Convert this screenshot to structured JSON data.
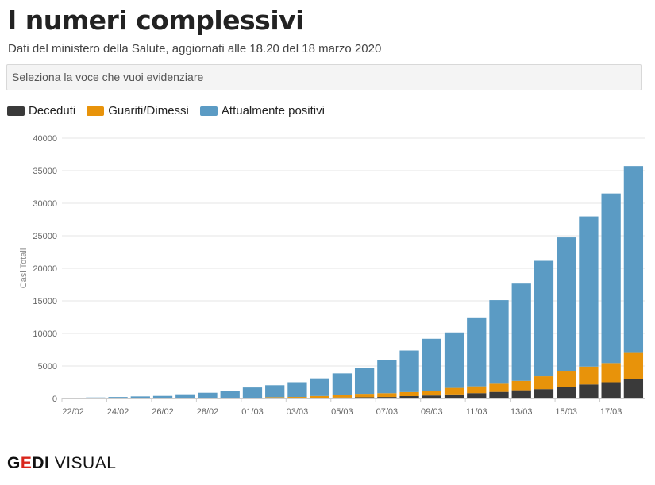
{
  "header": {
    "title": "I numeri complessivi",
    "subtitle": "Dati del ministero della Salute, aggiornati alle 18.20 del 18 marzo 2020"
  },
  "selector": {
    "placeholder": "Seleziona la voce che vuoi evidenziare"
  },
  "legend": [
    {
      "label": "Deceduti",
      "color": "#3a3a3a"
    },
    {
      "label": "Guariti/Dimessi",
      "color": "#e8930a"
    },
    {
      "label": "Attualmente positivi",
      "color": "#5b9bc4"
    }
  ],
  "footer": {
    "brand_main": "GEDI",
    "brand_sub": "VISUAL"
  },
  "chart_data": {
    "type": "bar",
    "stacked": true,
    "ylabel": "Casi Totali",
    "ylim": [
      0,
      40000
    ],
    "yticks": [
      0,
      5000,
      10000,
      15000,
      20000,
      25000,
      30000,
      35000,
      40000
    ],
    "grid": true,
    "legend_position": "top-left",
    "categories": [
      "22/02",
      "23/02",
      "24/02",
      "25/02",
      "26/02",
      "27/02",
      "28/02",
      "29/02",
      "01/03",
      "02/03",
      "03/03",
      "04/03",
      "05/03",
      "06/03",
      "07/03",
      "08/03",
      "09/03",
      "10/03",
      "11/03",
      "12/03",
      "13/03",
      "14/03",
      "15/03",
      "16/03",
      "17/03",
      "18/03"
    ],
    "xtick_labels": [
      "22/02",
      "24/02",
      "26/02",
      "28/02",
      "01/03",
      "03/03",
      "05/03",
      "07/03",
      "09/03",
      "11/03",
      "13/03",
      "15/03",
      "17/03"
    ],
    "series": [
      {
        "name": "Deceduti",
        "color": "#3a3a3a",
        "values": [
          2,
          3,
          7,
          10,
          12,
          17,
          21,
          29,
          34,
          52,
          79,
          107,
          148,
          197,
          233,
          366,
          463,
          631,
          827,
          1016,
          1266,
          1441,
          1809,
          2158,
          2503,
          2978
        ]
      },
      {
        "name": "Guariti/Dimessi",
        "color": "#e8930a",
        "values": [
          1,
          2,
          1,
          1,
          3,
          45,
          46,
          50,
          83,
          149,
          160,
          276,
          414,
          523,
          589,
          622,
          724,
          1004,
          1045,
          1258,
          1439,
          1966,
          2335,
          2749,
          2941,
          4025
        ]
      },
      {
        "name": "Attualmente positivi",
        "color": "#5b9bc4",
        "values": [
          76,
          147,
          221,
          311,
          385,
          588,
          821,
          1049,
          1577,
          1835,
          2263,
          2706,
          3296,
          3916,
          5061,
          6387,
          7985,
          8514,
          10590,
          12839,
          14955,
          17750,
          20603,
          23073,
          26062,
          28710
        ]
      }
    ]
  }
}
